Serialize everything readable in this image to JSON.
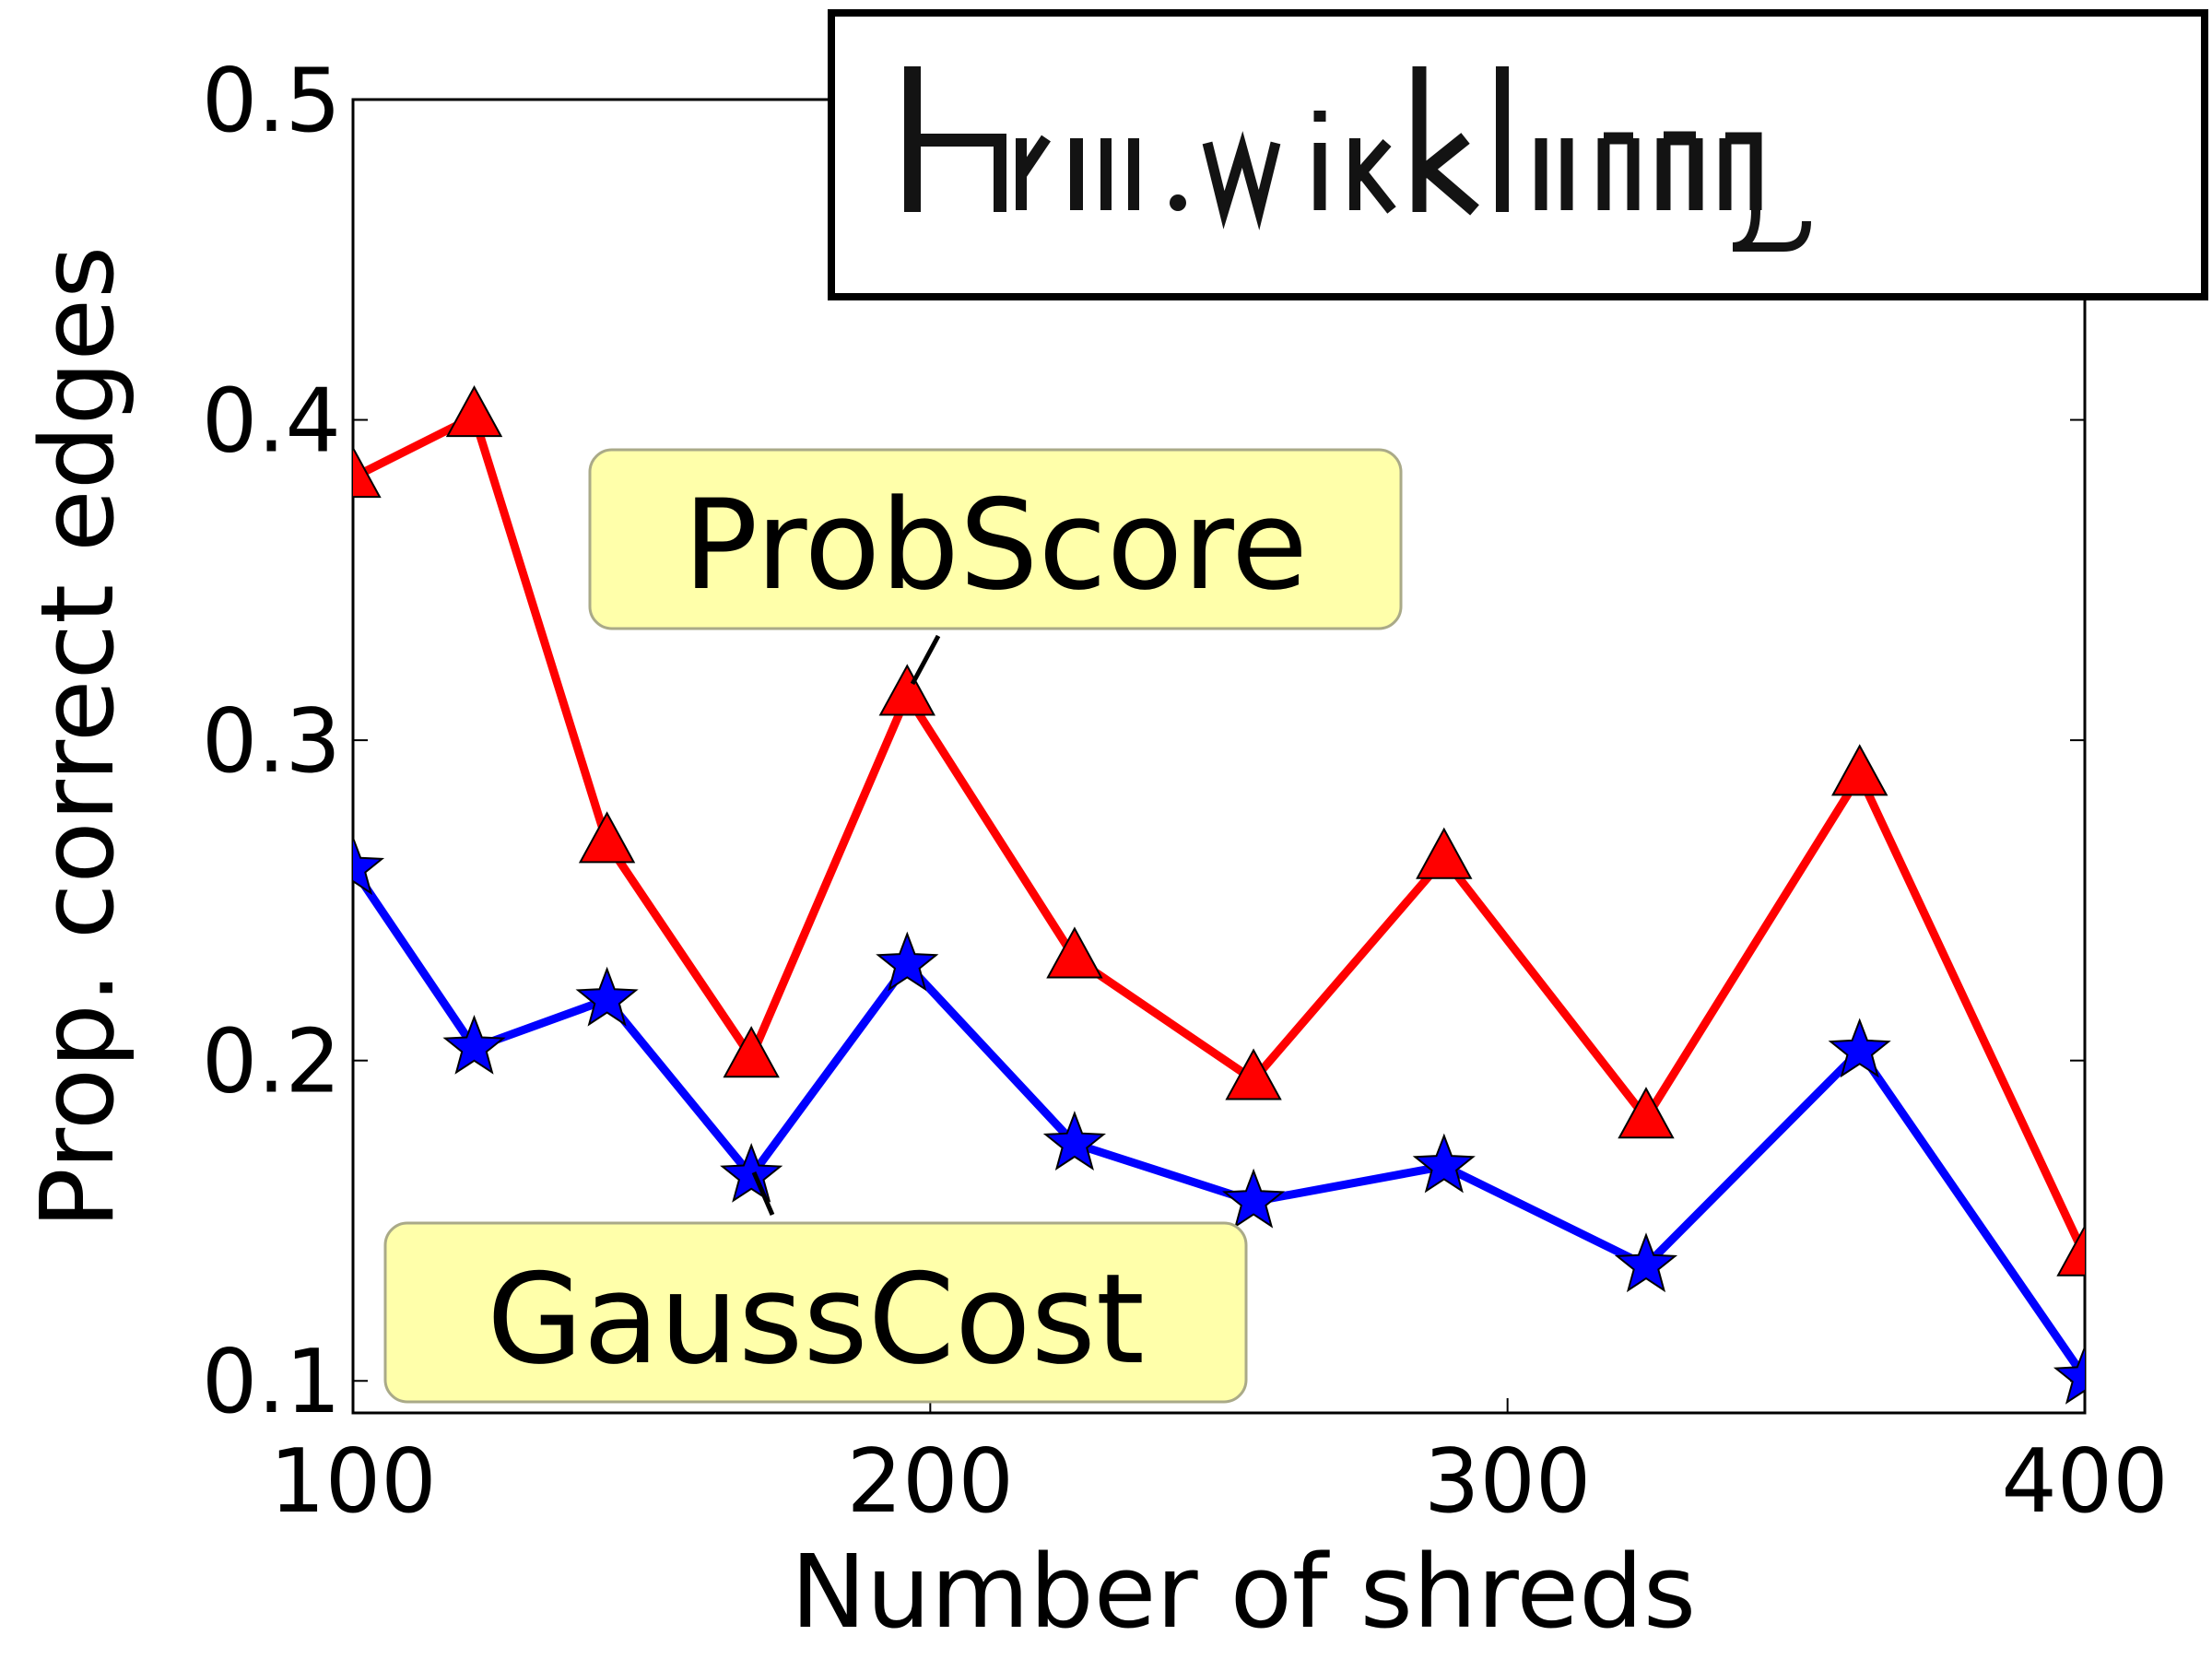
{
  "chart_data": {
    "type": "line",
    "title": "",
    "xlabel": "Number of shreds",
    "ylabel": "Prop. correct edges",
    "xlim": [
      100,
      400
    ],
    "ylim": [
      0.09,
      0.5
    ],
    "xticks": [
      100,
      200,
      300,
      400
    ],
    "xtick_labels": [
      "100",
      "200",
      "300",
      "400"
    ],
    "yticks": [
      0.1,
      0.2,
      0.3,
      0.4,
      0.5
    ],
    "ytick_labels": [
      "0.1",
      "0.2",
      "0.3",
      "0.4",
      "0.5"
    ],
    "grid": false,
    "series": [
      {
        "name": "ProbScore",
        "color": "#ff0000",
        "marker": "triangle",
        "x": [
          100,
          121,
          144,
          169,
          196,
          225,
          256,
          289,
          324,
          361,
          400
        ],
        "y": [
          0.382,
          0.401,
          0.268,
          0.201,
          0.314,
          0.232,
          0.194,
          0.263,
          0.182,
          0.289,
          0.139
        ]
      },
      {
        "name": "GaussCost",
        "color": "#0000ff",
        "marker": "star",
        "x": [
          100,
          121,
          144,
          169,
          196,
          225,
          256,
          289,
          324,
          361,
          400
        ],
        "y": [
          0.26,
          0.204,
          0.219,
          0.164,
          0.23,
          0.174,
          0.156,
          0.167,
          0.136,
          0.203,
          0.101
        ]
      }
    ],
    "annotations": [
      {
        "text": "ProbScore",
        "series": "ProbScore",
        "point_index": 4
      },
      {
        "text": "GaussCost",
        "series": "GaussCost",
        "point_index": 3
      }
    ]
  }
}
